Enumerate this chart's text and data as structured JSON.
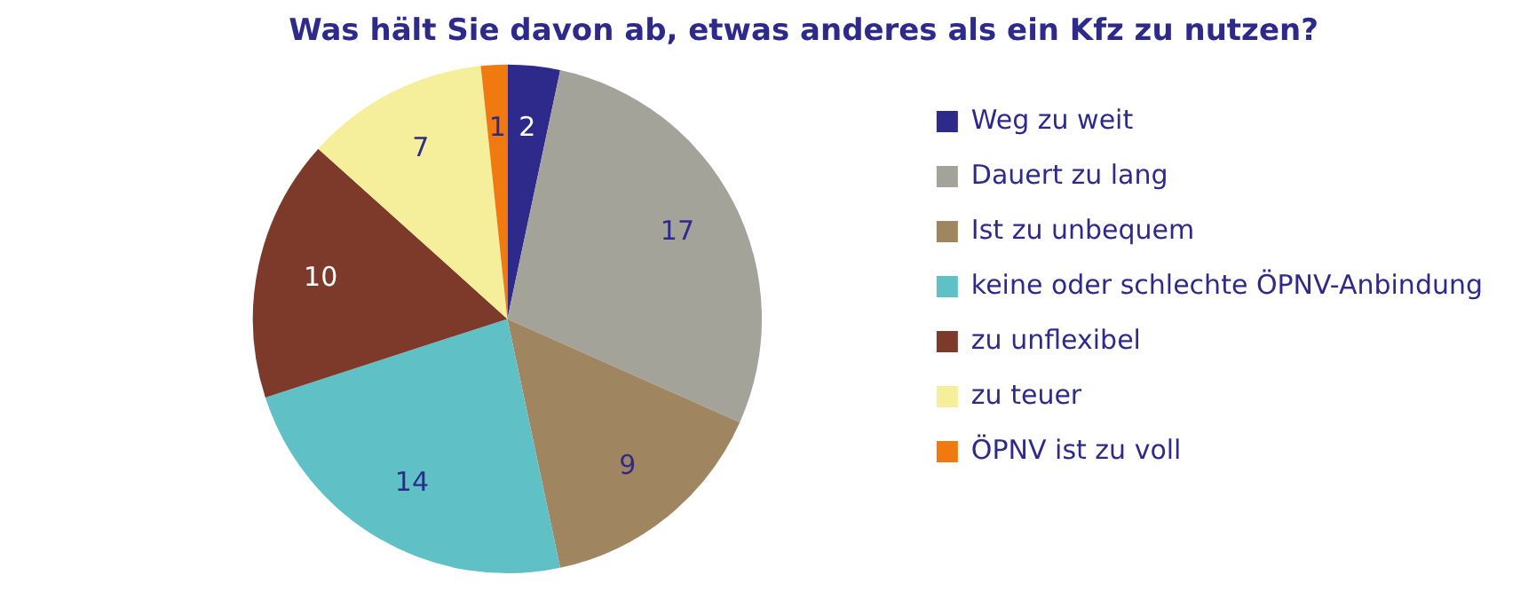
{
  "chart_data": {
    "type": "pie",
    "title": "Was hält Sie davon ab, etwas anderes als ein Kfz zu nutzen?",
    "categories": [
      "Weg zu weit",
      "Dauert zu lang",
      "Ist zu unbequem",
      "keine oder schlechte ÖPNV-Anbindung",
      "zu unflexibel",
      "zu teuer",
      "ÖPNV ist zu voll"
    ],
    "values": [
      2,
      17,
      9,
      14,
      10,
      7,
      1
    ],
    "colors": [
      "#2e2a8c",
      "#a3a39a",
      "#a08660",
      "#5fc0c5",
      "#7d3a2a",
      "#f5ee9a",
      "#f07a10"
    ],
    "data_labels": true,
    "legend": "right"
  }
}
